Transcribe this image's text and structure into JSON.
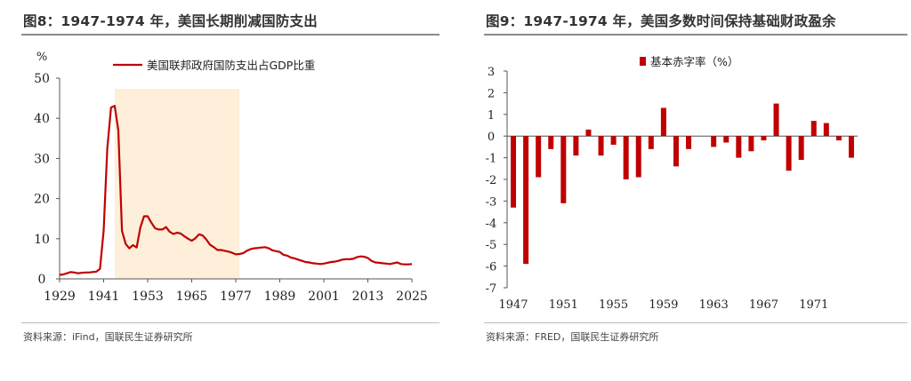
{
  "left_panel": {
    "figure_title": "图8：1947-1974 年，美国长期削减国防支出",
    "source": "资料来源：iFind，国联民生证券研究所"
  },
  "right_panel": {
    "figure_title": "图9：1947-1974 年，美国多数时间保持基础财政盈余",
    "source": "资料来源：FRED，国联民生证券研究所"
  },
  "colors": {
    "series": "#c00000",
    "shade": "#fdefd9",
    "axis": "#555555",
    "rule": "#8a8a8a"
  },
  "chart_data": [
    {
      "type": "line",
      "title": "",
      "ylabel": "%",
      "ylim": [
        0,
        50
      ],
      "yticks": [
        "0",
        "10",
        "20",
        "30",
        "40",
        "50"
      ],
      "xlim": [
        1929,
        2025
      ],
      "xticks": [
        "1929",
        "1941",
        "1953",
        "1965",
        "1977",
        "1989",
        "2001",
        "2013",
        "2025"
      ],
      "shaded_range": [
        1944,
        1978
      ],
      "legend_position": "top",
      "grid": false,
      "series": [
        {
          "name": "美国联邦政府国防支出占GDP比重",
          "x": [
            1929,
            1930,
            1931,
            1932,
            1933,
            1934,
            1935,
            1936,
            1937,
            1938,
            1939,
            1940,
            1941,
            1942,
            1943,
            1944,
            1945,
            1946,
            1947,
            1948,
            1949,
            1950,
            1951,
            1952,
            1953,
            1954,
            1955,
            1956,
            1957,
            1958,
            1959,
            1960,
            1961,
            1962,
            1963,
            1964,
            1965,
            1966,
            1967,
            1968,
            1969,
            1970,
            1971,
            1972,
            1973,
            1974,
            1975,
            1976,
            1977,
            1978,
            1979,
            1980,
            1981,
            1982,
            1983,
            1984,
            1985,
            1986,
            1987,
            1988,
            1989,
            1990,
            1991,
            1992,
            1993,
            1994,
            1995,
            1996,
            1997,
            1998,
            1999,
            2000,
            2001,
            2002,
            2003,
            2004,
            2005,
            2006,
            2007,
            2008,
            2009,
            2010,
            2011,
            2012,
            2013,
            2014,
            2015,
            2016,
            2017,
            2018,
            2019,
            2020,
            2021,
            2022,
            2023,
            2024,
            2025
          ],
          "y": [
            1.0,
            1.1,
            1.4,
            1.7,
            1.6,
            1.4,
            1.5,
            1.6,
            1.6,
            1.7,
            1.8,
            2.5,
            12.0,
            32.5,
            42.7,
            43.1,
            37.0,
            12.0,
            8.7,
            7.6,
            8.4,
            7.8,
            12.8,
            15.6,
            15.6,
            14.0,
            12.6,
            12.3,
            12.3,
            12.9,
            11.7,
            11.2,
            11.5,
            11.3,
            10.6,
            10.0,
            9.5,
            10.1,
            11.1,
            10.8,
            9.8,
            8.5,
            7.9,
            7.2,
            7.2,
            7.0,
            6.8,
            6.5,
            6.1,
            6.2,
            6.4,
            7.0,
            7.4,
            7.6,
            7.7,
            7.8,
            7.9,
            7.6,
            7.1,
            6.9,
            6.7,
            6.0,
            5.8,
            5.3,
            5.1,
            4.8,
            4.5,
            4.2,
            4.1,
            3.9,
            3.8,
            3.7,
            3.8,
            4.0,
            4.2,
            4.3,
            4.5,
            4.8,
            4.9,
            4.9,
            5.0,
            5.4,
            5.6,
            5.5,
            5.2,
            4.5,
            4.1,
            4.0,
            3.9,
            3.8,
            3.7,
            3.9,
            4.1,
            3.7,
            3.6,
            3.6,
            3.7
          ]
        }
      ]
    },
    {
      "type": "bar",
      "title": "",
      "ylabel": "",
      "ylim": [
        -7,
        3
      ],
      "yticks": [
        "3",
        "2",
        "1",
        "0",
        "-1",
        "-2",
        "-3",
        "-4",
        "-5",
        "-6",
        "-7"
      ],
      "xticks": [
        "1947",
        "1951",
        "1955",
        "1959",
        "1963",
        "1967",
        "1971"
      ],
      "legend_position": "top",
      "grid": false,
      "series": [
        {
          "name": "基本赤字率（%）",
          "x": [
            1947,
            1948,
            1949,
            1950,
            1951,
            1952,
            1953,
            1954,
            1955,
            1956,
            1957,
            1958,
            1959,
            1960,
            1961,
            1962,
            1963,
            1964,
            1965,
            1966,
            1967,
            1968,
            1969,
            1970,
            1971,
            1972,
            1973,
            1974
          ],
          "values": [
            -3.3,
            -5.9,
            -1.9,
            -0.6,
            -3.1,
            -0.9,
            0.3,
            -0.9,
            -0.4,
            -2.0,
            -1.9,
            -0.6,
            1.3,
            -1.4,
            -0.6,
            0.0,
            -0.5,
            -0.3,
            -1.0,
            -0.7,
            -0.2,
            1.5,
            -1.6,
            -1.1,
            0.7,
            0.6,
            -0.2,
            -1.0
          ]
        }
      ]
    }
  ]
}
